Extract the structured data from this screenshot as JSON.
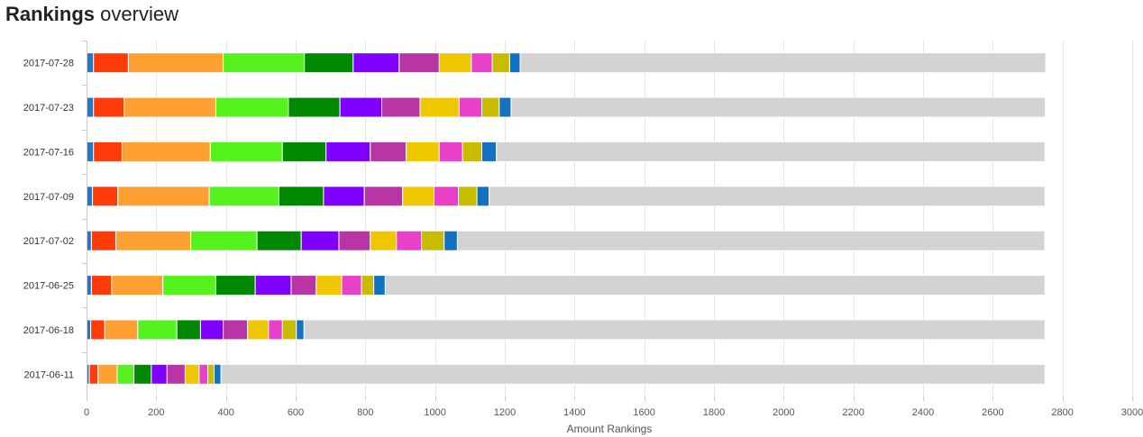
{
  "page": {
    "title_strong": "Rankings",
    "title_light": "overview"
  },
  "chart_data": {
    "type": "bar",
    "orientation": "horizontal",
    "stacked": true,
    "title": "Rankings overview",
    "xlabel": "Amount Rankings",
    "ylabel": "",
    "xlim": [
      0,
      3000
    ],
    "xticks": [
      0,
      200,
      400,
      600,
      800,
      1000,
      1200,
      1400,
      1600,
      1800,
      2000,
      2200,
      2400,
      2600,
      2800,
      3000
    ],
    "grid": true,
    "legend": "none",
    "categories": [
      "2017-07-28",
      "2017-07-23",
      "2017-07-16",
      "2017-07-09",
      "2017-07-02",
      "2017-06-25",
      "2017-06-18",
      "2017-06-11"
    ],
    "series": [
      {
        "color": "#1f77d0",
        "values": [
          20,
          20,
          20,
          17,
          14,
          14,
          12,
          8
        ]
      },
      {
        "color": "#ff3b0a",
        "values": [
          100,
          88,
          82,
          73,
          70,
          58,
          40,
          25
        ]
      },
      {
        "color": "#ffa033",
        "values": [
          272,
          263,
          253,
          262,
          215,
          147,
          95,
          55
        ]
      },
      {
        "color": "#55f21e",
        "values": [
          233,
          208,
          207,
          200,
          190,
          152,
          112,
          48
        ]
      },
      {
        "color": "#008800",
        "values": [
          140,
          148,
          125,
          128,
          127,
          113,
          68,
          50
        ]
      },
      {
        "color": "#8000ff",
        "values": [
          132,
          120,
          127,
          117,
          108,
          103,
          65,
          45
        ]
      },
      {
        "color": "#b935a5",
        "values": [
          115,
          110,
          103,
          110,
          90,
          72,
          70,
          52
        ]
      },
      {
        "color": "#eec700",
        "values": [
          92,
          112,
          95,
          90,
          75,
          73,
          60,
          40
        ]
      },
      {
        "color": "#e840c9",
        "values": [
          60,
          65,
          67,
          70,
          72,
          57,
          40,
          25
        ]
      },
      {
        "color": "#c8bb00",
        "values": [
          50,
          50,
          55,
          53,
          65,
          35,
          40,
          18
        ]
      },
      {
        "color": "#1371c2",
        "values": [
          30,
          34,
          42,
          35,
          38,
          33,
          22,
          20
        ]
      },
      {
        "color": "#d3d3d3",
        "values": [
          1508,
          1533,
          1574,
          1595,
          1685,
          1893,
          2126,
          2364
        ]
      }
    ]
  }
}
